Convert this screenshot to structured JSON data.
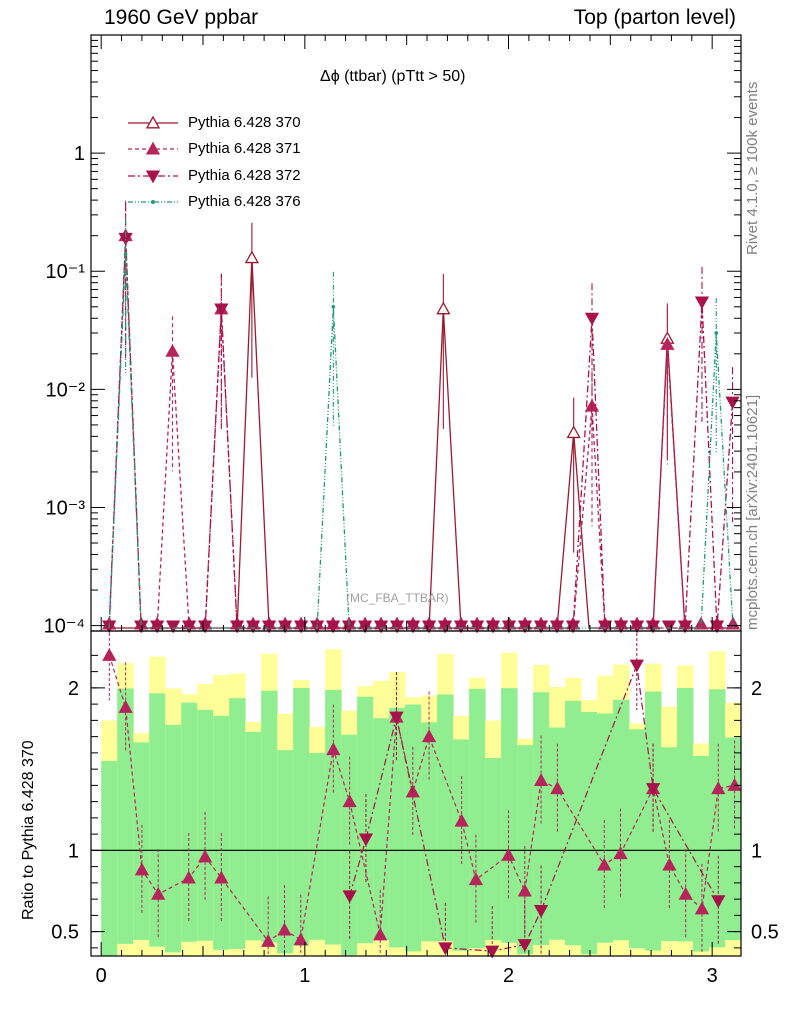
{
  "header": {
    "left": "1960 GeV ppbar",
    "right": "Top (parton level)"
  },
  "plot_title": "Δϕ (ttbar) (pTtt > 50)",
  "side_text": {
    "rivet": "Rivet 4.1.0, ≥ 100k events",
    "mcplots": "mcplots.cern.ch [arXiv:2401.10621]"
  },
  "analysis_tag": "(MC_FBA_TTBAR)",
  "ratio_ylabel": "Ratio to Pythia 6.428 370",
  "colors": {
    "s370": "#9a1b2f",
    "s371": "#b5245b",
    "s372": "#a8124a",
    "s376": "#1e9a7a",
    "band_green": "#90ee90",
    "band_yellow": "#ffff99"
  },
  "chart_data": {
    "type": "line",
    "x_range": [
      -0.05,
      3.1416
    ],
    "main_y_scale": "log",
    "main_ylim": [
      9e-05,
      10
    ],
    "main_y_ticks": [
      "10⁻⁴",
      "10⁻³",
      "10⁻²",
      "10⁻¹",
      "1"
    ],
    "ratio_ylim": [
      0.35,
      2.35
    ],
    "ratio_y_ticks": [
      "0.5",
      "1",
      "2"
    ],
    "x_ticks": [
      "0",
      "1",
      "2",
      "3"
    ],
    "reference_line": 1,
    "legend": [
      {
        "name": "Pythia 6.428 370",
        "marker": "open-triangle-up",
        "style": "solid"
      },
      {
        "name": "Pythia 6.428 371",
        "marker": "filled-triangle-up",
        "style": "dashed"
      },
      {
        "name": "Pythia 6.428 372",
        "marker": "filled-triangle-down",
        "style": "dashdot"
      },
      {
        "name": "Pythia 6.428 376",
        "marker": "dot",
        "style": "dashdotdot"
      }
    ],
    "series": [
      {
        "name": "Pythia 6.428 370",
        "peaks": [
          {
            "x": 0.74,
            "y": 0.13
          },
          {
            "x": 1.68,
            "y": 0.048
          },
          {
            "x": 2.32,
            "y": 0.0043
          },
          {
            "x": 2.78,
            "y": 0.027
          }
        ]
      },
      {
        "name": "Pythia 6.428 371",
        "peaks": [
          {
            "x": 0.12,
            "y": 0.2
          },
          {
            "x": 0.35,
            "y": 0.021
          },
          {
            "x": 0.59,
            "y": 0.048
          },
          {
            "x": 2.41,
            "y": 0.0072
          },
          {
            "x": 2.78,
            "y": 0.024
          }
        ]
      },
      {
        "name": "Pythia 6.428 372",
        "peaks": [
          {
            "x": 0.12,
            "y": 0.19
          },
          {
            "x": 0.59,
            "y": 0.048
          },
          {
            "x": 2.41,
            "y": 0.04
          },
          {
            "x": 2.95,
            "y": 0.055
          },
          {
            "x": 3.1,
            "y": 0.0078
          }
        ]
      },
      {
        "name": "Pythia 6.428 376",
        "peaks": [
          {
            "x": 0.12,
            "y": 0.14
          },
          {
            "x": 1.14,
            "y": 0.05
          },
          {
            "x": 3.02,
            "y": 0.03
          }
        ]
      }
    ],
    "ratio_371": [
      {
        "x": 0.04,
        "y": 2.2
      },
      {
        "x": 0.12,
        "y": 1.88
      },
      {
        "x": 0.2,
        "y": 0.88
      },
      {
        "x": 0.28,
        "y": 0.73
      },
      {
        "x": 0.43,
        "y": 0.83
      },
      {
        "x": 0.51,
        "y": 0.96
      },
      {
        "x": 0.59,
        "y": 0.83
      },
      {
        "x": 0.82,
        "y": 0.44
      },
      {
        "x": 0.9,
        "y": 0.51
      },
      {
        "x": 0.98,
        "y": 0.45
      },
      {
        "x": 1.14,
        "y": 1.62
      },
      {
        "x": 1.22,
        "y": 1.3
      },
      {
        "x": 1.37,
        "y": 0.48
      },
      {
        "x": 1.45,
        "y": 1.82
      },
      {
        "x": 1.53,
        "y": 1.36
      },
      {
        "x": 1.61,
        "y": 1.7
      },
      {
        "x": 1.77,
        "y": 1.18
      },
      {
        "x": 1.84,
        "y": 0.82
      },
      {
        "x": 2.0,
        "y": 0.97
      },
      {
        "x": 2.08,
        "y": 0.75
      },
      {
        "x": 2.16,
        "y": 1.43
      },
      {
        "x": 2.24,
        "y": 1.38
      },
      {
        "x": 2.47,
        "y": 0.91
      },
      {
        "x": 2.55,
        "y": 0.98
      },
      {
        "x": 2.71,
        "y": 1.38
      },
      {
        "x": 2.79,
        "y": 0.91
      },
      {
        "x": 2.87,
        "y": 0.73
      },
      {
        "x": 2.95,
        "y": 0.64
      },
      {
        "x": 3.03,
        "y": 1.38
      },
      {
        "x": 3.11,
        "y": 1.4
      }
    ],
    "ratio_372": [
      {
        "x": 1.22,
        "y": 0.72
      },
      {
        "x": 1.3,
        "y": 1.07
      },
      {
        "x": 1.45,
        "y": 1.82
      },
      {
        "x": 1.69,
        "y": 0.4
      },
      {
        "x": 1.92,
        "y": 0.38
      },
      {
        "x": 2.08,
        "y": 0.42
      },
      {
        "x": 2.16,
        "y": 0.63
      },
      {
        "x": 2.63,
        "y": 2.14
      },
      {
        "x": 2.71,
        "y": 1.38
      },
      {
        "x": 3.03,
        "y": 0.69
      }
    ]
  }
}
